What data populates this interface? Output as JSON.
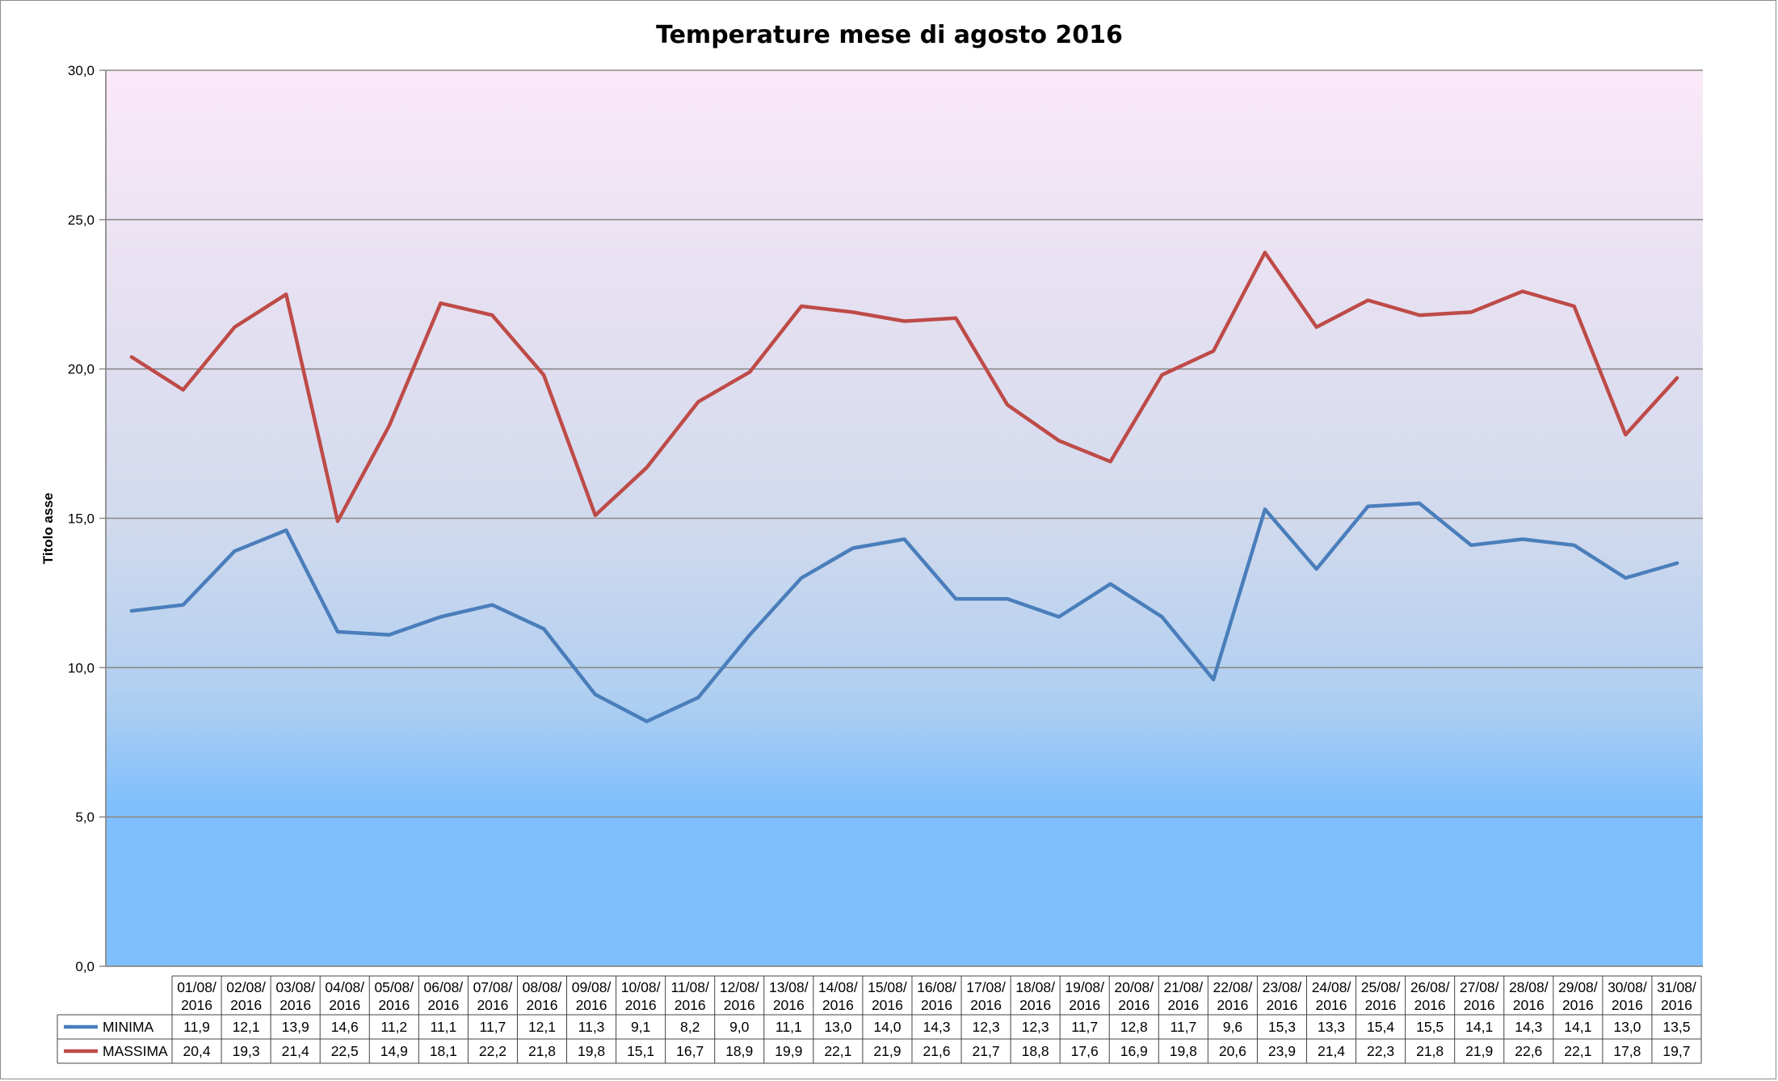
{
  "chart_data": {
    "type": "line",
    "title": "Temperature mese di agosto 2016",
    "ylabel": "Titolo asse",
    "xlabel": "",
    "ylim": [
      0,
      30
    ],
    "yticks": [
      "0,0",
      "5,0",
      "10,0",
      "15,0",
      "20,0",
      "25,0",
      "30,0"
    ],
    "ytick_values": [
      0,
      5,
      10,
      15,
      20,
      25,
      30
    ],
    "grid": true,
    "legend": "data-table",
    "categories": [
      "01/08/ 2016",
      "02/08/ 2016",
      "03/08/ 2016",
      "04/08/ 2016",
      "05/08/ 2016",
      "06/08/ 2016",
      "07/08/ 2016",
      "08/08/ 2016",
      "09/08/ 2016",
      "10/08/ 2016",
      "11/08/ 2016",
      "12/08/ 2016",
      "13/08/ 2016",
      "14/08/ 2016",
      "15/08/ 2016",
      "16/08/ 2016",
      "17/08/ 2016",
      "18/08/ 2016",
      "19/08/ 2016",
      "20/08/ 2016",
      "21/08/ 2016",
      "22/08/ 2016",
      "23/08/ 2016",
      "24/08/ 2016",
      "25/08/ 2016",
      "26/08/ 2016",
      "27/08/ 2016",
      "28/08/ 2016",
      "29/08/ 2016",
      "30/08/ 2016",
      "31/08/ 2016"
    ],
    "series": [
      {
        "name": "MINIMA",
        "color": "#4a7ebb",
        "values": [
          11.9,
          12.1,
          13.9,
          14.6,
          11.2,
          11.1,
          11.7,
          12.1,
          11.3,
          9.1,
          8.2,
          9.0,
          11.1,
          13.0,
          14.0,
          14.3,
          12.3,
          12.3,
          11.7,
          12.8,
          11.7,
          9.6,
          15.3,
          13.3,
          15.4,
          15.5,
          14.1,
          14.3,
          14.1,
          13.0,
          13.5
        ],
        "labels": [
          "11,9",
          "12,1",
          "13,9",
          "14,6",
          "11,2",
          "11,1",
          "11,7",
          "12,1",
          "11,3",
          "9,1",
          "8,2",
          "9,0",
          "11,1",
          "13,0",
          "14,0",
          "14,3",
          "12,3",
          "12,3",
          "11,7",
          "12,8",
          "11,7",
          "9,6",
          "15,3",
          "13,3",
          "15,4",
          "15,5",
          "14,1",
          "14,3",
          "14,1",
          "13,0",
          "13,5"
        ]
      },
      {
        "name": "MASSIMA",
        "color": "#be4b48",
        "values": [
          20.4,
          19.3,
          21.4,
          22.5,
          14.9,
          18.1,
          22.2,
          21.8,
          19.8,
          15.1,
          16.7,
          18.9,
          19.9,
          22.1,
          21.9,
          21.6,
          21.7,
          18.8,
          17.6,
          16.9,
          19.8,
          20.6,
          23.9,
          21.4,
          22.3,
          21.8,
          21.9,
          22.6,
          22.1,
          17.8,
          19.7
        ],
        "labels": [
          "20,4",
          "19,3",
          "21,4",
          "22,5",
          "14,9",
          "18,1",
          "22,2",
          "21,8",
          "19,8",
          "15,1",
          "16,7",
          "18,9",
          "19,9",
          "22,1",
          "21,9",
          "21,6",
          "21,7",
          "18,8",
          "17,6",
          "16,9",
          "19,8",
          "20,6",
          "23,9",
          "21,4",
          "22,3",
          "21,8",
          "21,9",
          "22,6",
          "22,1",
          "17,8",
          "19,7"
        ]
      }
    ],
    "background_gradient": [
      "#fbe9f8",
      "#dcdcef",
      "#b9d5ef",
      "#80bffd",
      "#80bffd"
    ]
  }
}
